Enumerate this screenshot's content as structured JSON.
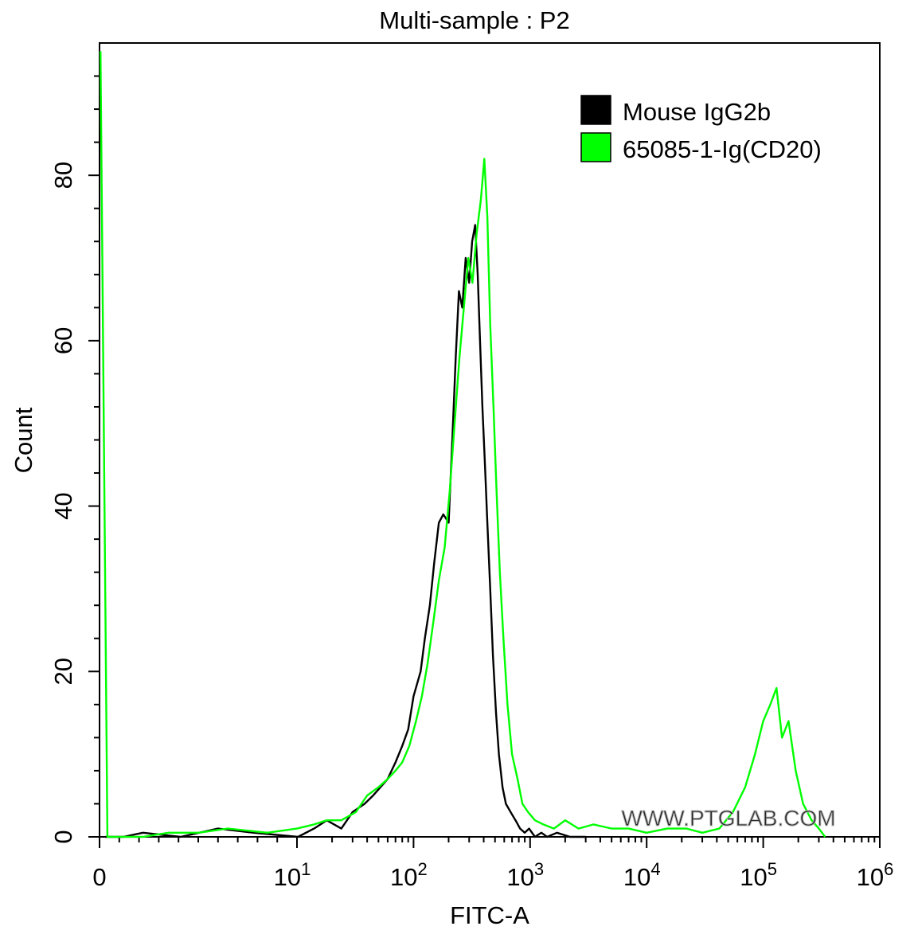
{
  "chart_data": {
    "type": "line",
    "title": "Multi-sample : P2",
    "xlabel": "FITC-A",
    "ylabel": "Count",
    "xscale": "biexponential (linear near 0, log10 above 10)",
    "xlim": [
      0,
      1000000
    ],
    "ylim": [
      0,
      96
    ],
    "y_ticks": [
      "0",
      "20",
      "40",
      "60",
      "80"
    ],
    "x_ticks": [
      {
        "base": "0",
        "exp": ""
      },
      {
        "base": "10",
        "exp": "1"
      },
      {
        "base": "10",
        "exp": "2"
      },
      {
        "base": "10",
        "exp": "3"
      },
      {
        "base": "10",
        "exp": "4"
      },
      {
        "base": "10",
        "exp": "5"
      },
      {
        "base": "10",
        "exp": "6"
      }
    ],
    "grid": false,
    "legend_position": "top-right",
    "watermark": "WWW.PTGLAB.COM",
    "series": [
      {
        "name": "Mouse IgG2b",
        "color": "#000000",
        "x": [
          0.3,
          1.2,
          2.2,
          4.1,
          6.0,
          7.8,
          10.2,
          14.0,
          18.0,
          24.0,
          30.0,
          38.0,
          45.0,
          52.0,
          60.0,
          70.0,
          80.0,
          90.0,
          100.0,
          115.0,
          125.0,
          138.0,
          150.0,
          165.0,
          180.0,
          200.0,
          215.0,
          230.0,
          245.0,
          262.0,
          280.0,
          300.0,
          318.0,
          338.0,
          355.0,
          372.0,
          390.0,
          410.0,
          430.0,
          455.0,
          480.0,
          510.0,
          540.0,
          580.0,
          620.0,
          680.0,
          750.0,
          820.0,
          900.0,
          980.0,
          1100.0,
          1250.0,
          1400.0,
          1700.0,
          2200.0,
          3000.0
        ],
        "y": [
          0,
          0,
          0.5,
          0,
          1,
          0.5,
          0,
          1,
          2,
          1,
          3,
          4,
          5,
          6,
          7,
          9,
          11,
          13,
          17,
          20,
          24,
          28,
          33,
          38,
          39,
          38,
          48,
          58,
          66,
          64,
          70,
          67,
          72,
          74,
          68,
          60,
          52,
          45,
          38,
          30,
          22,
          15,
          10,
          6,
          4,
          3,
          2,
          1,
          0.5,
          1,
          0,
          0.5,
          0,
          0.5,
          0,
          0
        ]
      },
      {
        "name": "65085-1-Ig(CD20)",
        "color": "#00ff00",
        "x": [
          0.05,
          0.15,
          0.4,
          1.2,
          2.2,
          3.5,
          5.0,
          6.5,
          8.5,
          10.0,
          14.0,
          18.0,
          24.0,
          32.0,
          40.0,
          50.0,
          60.0,
          70.0,
          80.0,
          92.0,
          105.0,
          118.0,
          132.0,
          148.0,
          165.0,
          185.0,
          205.0,
          225.0,
          248.0,
          270.0,
          295.0,
          320.0,
          348.0,
          378.0,
          405.0,
          430.0,
          455.0,
          485.0,
          515.0,
          550.0,
          590.0,
          640.0,
          700.0,
          780.0,
          860.0,
          960.0,
          1100.0,
          1300.0,
          1600.0,
          2000.0,
          2600.0,
          3500.0,
          5000.0,
          7000.0,
          10000.0,
          15000.0,
          22000.0,
          30000.0,
          42000.0,
          55000.0,
          70000.0,
          85000.0,
          100000.0,
          115000.0,
          130000.0,
          145000.0,
          165000.0,
          190000.0,
          220000.0,
          260000.0,
          300000.0,
          340000.0
        ],
        "y": [
          95,
          68,
          0,
          0,
          0,
          0.5,
          0.5,
          1,
          0.5,
          1,
          1.5,
          2,
          2,
          3,
          5,
          6,
          7,
          8,
          9,
          11,
          14,
          17,
          21,
          26,
          31,
          35,
          42,
          50,
          58,
          64,
          70,
          67,
          73,
          77,
          82,
          75,
          62,
          52,
          42,
          32,
          24,
          16,
          10,
          7,
          4,
          3,
          2,
          1.5,
          1,
          2,
          1,
          1.5,
          1,
          1,
          0.5,
          1,
          1,
          0.5,
          1,
          3,
          6,
          10,
          14,
          16,
          18,
          12,
          14,
          8,
          4,
          2,
          1,
          0
        ]
      }
    ]
  }
}
